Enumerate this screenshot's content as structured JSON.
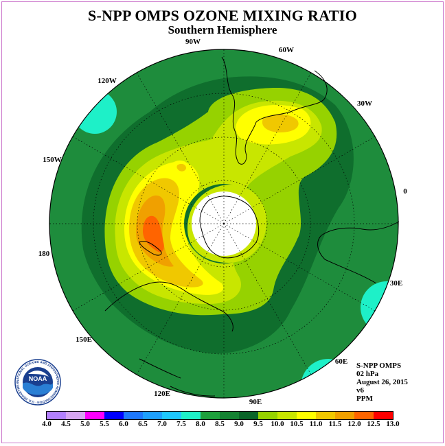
{
  "header": {
    "title": "S-NPP OMPS OZONE MIXING RATIO",
    "subtitle": "Southern Hemisphere"
  },
  "longitude_labels": {
    "lon_90w": "90W",
    "lon_60w": "60W",
    "lon_30w": "30W",
    "lon_0": "0",
    "lon_30e": "30E",
    "lon_60e": "60E",
    "lon_90e": "90E",
    "lon_120e": "120E",
    "lon_150e": "150E",
    "lon_180": "180",
    "lon_150w": "150W",
    "lon_120w": "120W"
  },
  "info": {
    "instrument": "S-NPP OMPS",
    "level": "02 hPa",
    "date": "August 26, 2015",
    "version": "v6",
    "units": "PPM"
  },
  "logo": {
    "text": "NOAA",
    "ring_text": "NATIONAL OCEANIC AND ATMOSPHERIC ADMINISTRATION · U.S. DEPARTMENT OF COMMERCE"
  },
  "colorbar": {
    "labels": [
      "4.0",
      "4.5",
      "5.0",
      "5.5",
      "6.0",
      "6.5",
      "7.0",
      "7.5",
      "8.0",
      "8.5",
      "9.0",
      "9.5",
      "10.0",
      "10.5",
      "11.0",
      "11.5",
      "12.0",
      "12.5",
      "13.0"
    ],
    "colors": [
      "#b380ff",
      "#d7a6f2",
      "#ff00ff",
      "#0000ff",
      "#1e78ff",
      "#1ea0ff",
      "#1ec8ff",
      "#1ef0c8",
      "#1ea03c",
      "#148232",
      "#0a6428",
      "#96d200",
      "#c8e600",
      "#ffff00",
      "#f0c800",
      "#f0a000",
      "#ff6400",
      "#ff0000",
      "#8c5a2d"
    ]
  },
  "map_colors": {
    "background": "#1e8c3c",
    "ring_dark": "#0f6e2d",
    "light_green": "#96d200",
    "yellow_green": "#c8e600",
    "yellow": "#ffff00",
    "gold": "#f0c800",
    "orange": "#f0a000",
    "dark_orange": "#ff6400",
    "cyan": "#1ef0c8",
    "pole": "#ffffff"
  }
}
